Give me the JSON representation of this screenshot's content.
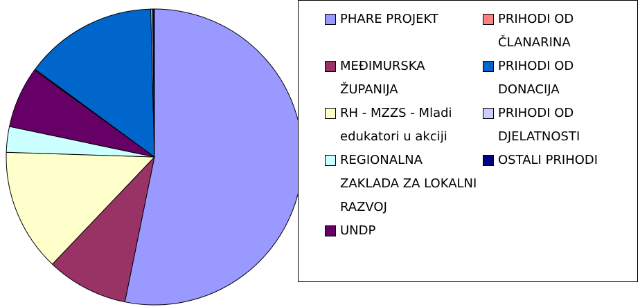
{
  "chart_data": {
    "type": "pie",
    "categories": [
      "PHARE PROJEKT",
      "MEĐIMURSKA ŽUPANIJA",
      "RH - MZZS - Mladi edukatori u akciji",
      "REGIONALNA ZAKLADA ZA LOKALNI RAZVOJ",
      "UNDP",
      "PRIHODI OD ČLANARINA",
      "PRIHODI OD DONACIJA",
      "PRIHODI OD DJELATNOSTI",
      "OSTALI PRIHODI"
    ],
    "values": [
      53.2,
      8.9,
      13.4,
      2.8,
      6.7,
      0.1,
      14.5,
      0.2,
      0.2
    ],
    "colors": [
      "#9999ff",
      "#993366",
      "#ffffcc",
      "#ccffff",
      "#660066",
      "#ff8080",
      "#0066cc",
      "#ccccff",
      "#000080"
    ],
    "legend": "right"
  }
}
